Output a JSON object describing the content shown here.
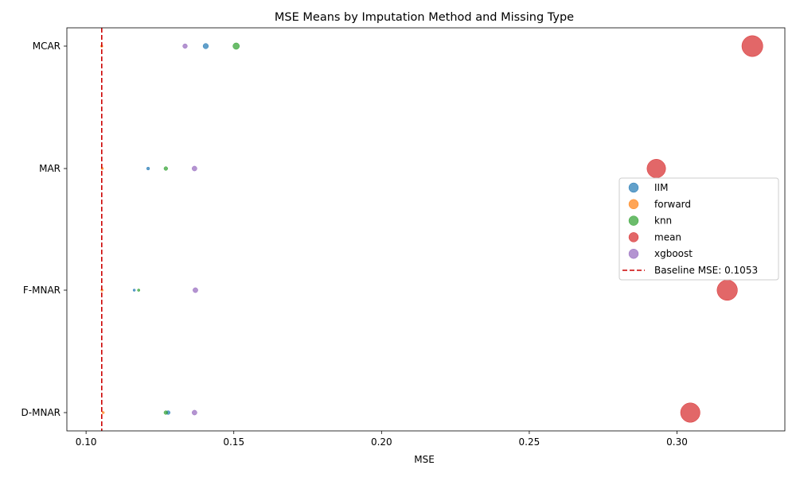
{
  "chart_data": {
    "type": "scatter",
    "title": "MSE Means by Imputation Method and Missing Type",
    "xlabel": "MSE",
    "ylabel": "",
    "xlim": [
      0.0935,
      0.3365
    ],
    "x_ticks": [
      0.1,
      0.15,
      0.2,
      0.25,
      0.3
    ],
    "x_tick_labels": [
      "0.10",
      "0.15",
      "0.20",
      "0.25",
      "0.30"
    ],
    "categories": [
      "MCAR",
      "MAR",
      "F-MNAR",
      "D-MNAR"
    ],
    "grid": false,
    "legend_position": "center-right",
    "size_encoding": "marker size grows with MSE",
    "series": [
      {
        "name": "IIM",
        "color": "#1f77b4",
        "points": [
          {
            "category": "MCAR",
            "x": 0.1405
          },
          {
            "category": "MAR",
            "x": 0.121
          },
          {
            "category": "F-MNAR",
            "x": 0.1163
          },
          {
            "category": "D-MNAR",
            "x": 0.1278
          }
        ]
      },
      {
        "name": "forward",
        "color": "#ff7f0e",
        "points": [
          {
            "category": "MCAR",
            "x": 0.1053
          },
          {
            "category": "MAR",
            "x": 0.1055
          },
          {
            "category": "F-MNAR",
            "x": 0.1054
          },
          {
            "category": "D-MNAR",
            "x": 0.1058
          }
        ]
      },
      {
        "name": "knn",
        "color": "#2ca02c",
        "points": [
          {
            "category": "MCAR",
            "x": 0.1508
          },
          {
            "category": "MAR",
            "x": 0.127
          },
          {
            "category": "F-MNAR",
            "x": 0.1178
          },
          {
            "category": "D-MNAR",
            "x": 0.127
          }
        ]
      },
      {
        "name": "mean",
        "color": "#d62728",
        "points": [
          {
            "category": "MCAR",
            "x": 0.3255
          },
          {
            "category": "MAR",
            "x": 0.293
          },
          {
            "category": "F-MNAR",
            "x": 0.317
          },
          {
            "category": "D-MNAR",
            "x": 0.3045
          }
        ]
      },
      {
        "name": "xgboost",
        "color": "#9467bd",
        "points": [
          {
            "category": "MCAR",
            "x": 0.1335
          },
          {
            "category": "MAR",
            "x": 0.1367
          },
          {
            "category": "F-MNAR",
            "x": 0.137
          },
          {
            "category": "D-MNAR",
            "x": 0.1367
          }
        ]
      }
    ],
    "baseline": {
      "label": "Baseline MSE: 0.1053",
      "value": 0.1053,
      "color": "#cc0000",
      "style": "dashed"
    }
  }
}
